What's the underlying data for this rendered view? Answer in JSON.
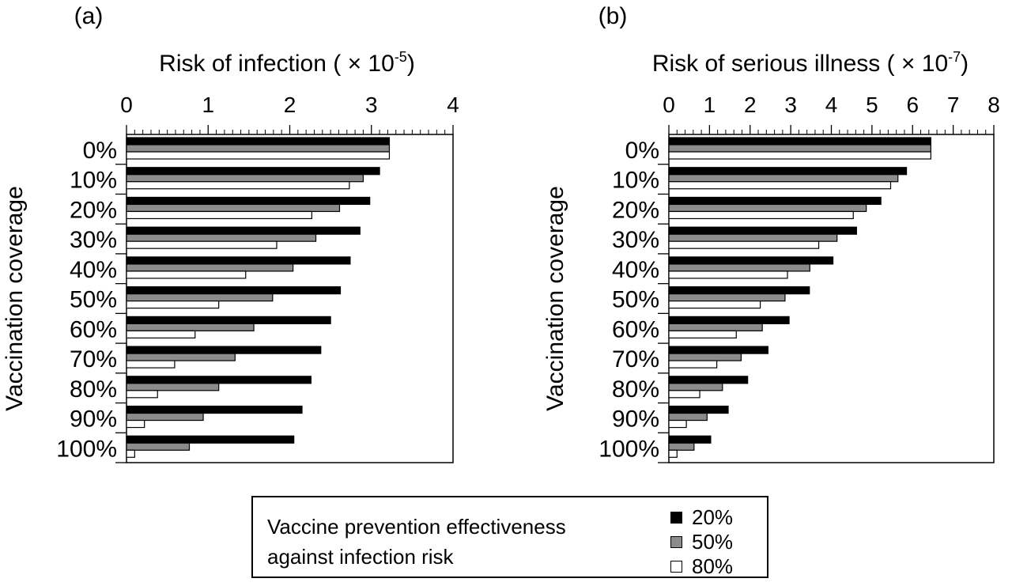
{
  "colors": {
    "eff20": "#000000",
    "eff50": "#8c8c8c",
    "eff80": "#ffffff"
  },
  "legend": {
    "title_line1": "Vaccine prevention effectiveness",
    "title_line2": "against infection risk",
    "items": [
      {
        "label": "20%",
        "color": "#000000"
      },
      {
        "label": "50%",
        "color": "#8c8c8c"
      },
      {
        "label": "80%",
        "color": "#ffffff"
      }
    ]
  },
  "chart_data": [
    {
      "type": "bar",
      "orientation": "horizontal",
      "panel_label": "(a)",
      "title": "Risk of infection",
      "title_multiplier": "( × 10",
      "title_exponent": "-5",
      "title_close": ")",
      "ylabel": "Vaccination coverage",
      "xlim": [
        0,
        4
      ],
      "xticks": [
        0,
        1,
        2,
        3,
        4
      ],
      "minor_ticks_per_major": 10,
      "categories": [
        "0%",
        "10%",
        "20%",
        "30%",
        "40%",
        "50%",
        "60%",
        "70%",
        "80%",
        "90%",
        "100%"
      ],
      "series": [
        {
          "name": "20%",
          "values": [
            3.22,
            3.1,
            2.98,
            2.86,
            2.74,
            2.62,
            2.5,
            2.38,
            2.26,
            2.15,
            2.05
          ]
        },
        {
          "name": "50%",
          "values": [
            3.22,
            2.9,
            2.61,
            2.32,
            2.04,
            1.79,
            1.56,
            1.33,
            1.13,
            0.94,
            0.77
          ]
        },
        {
          "name": "80%",
          "values": [
            3.22,
            2.73,
            2.27,
            1.84,
            1.46,
            1.13,
            0.84,
            0.59,
            0.38,
            0.22,
            0.1
          ]
        }
      ]
    },
    {
      "type": "bar",
      "orientation": "horizontal",
      "panel_label": "(b)",
      "title": "Risk of serious illness",
      "title_multiplier": "( × 10",
      "title_exponent": "-7",
      "title_close": ")",
      "ylabel": "Vaccination coverage",
      "xlim": [
        0,
        8
      ],
      "xticks": [
        0,
        1,
        2,
        3,
        4,
        5,
        6,
        7,
        8
      ],
      "minor_ticks_per_major": 5,
      "categories": [
        "0%",
        "10%",
        "20%",
        "30%",
        "40%",
        "50%",
        "60%",
        "70%",
        "80%",
        "90%",
        "100%"
      ],
      "series": [
        {
          "name": "20%",
          "values": [
            6.45,
            5.85,
            5.22,
            4.62,
            4.04,
            3.46,
            2.96,
            2.44,
            1.94,
            1.46,
            1.03
          ]
        },
        {
          "name": "50%",
          "values": [
            6.45,
            5.64,
            4.86,
            4.14,
            3.47,
            2.86,
            2.3,
            1.78,
            1.32,
            0.94,
            0.62
          ]
        },
        {
          "name": "80%",
          "values": [
            6.45,
            5.46,
            4.54,
            3.69,
            2.92,
            2.25,
            1.66,
            1.18,
            0.76,
            0.43,
            0.2
          ]
        }
      ]
    }
  ]
}
